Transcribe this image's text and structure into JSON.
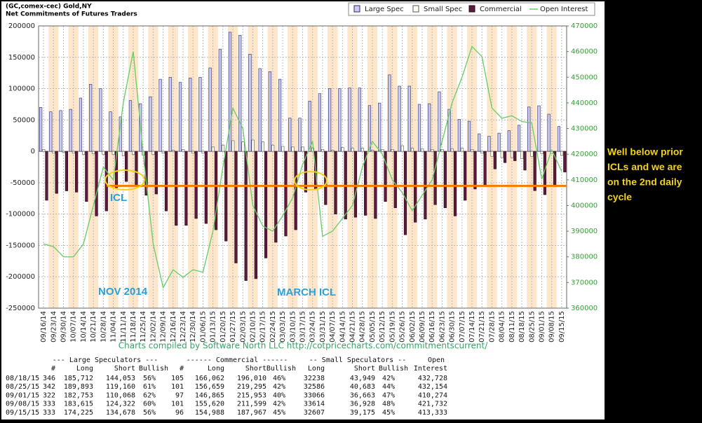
{
  "chart_data": {
    "type": "bar",
    "title": "(GC,comex-cec) Gold,NY",
    "subtitle": "Net Commitments of Futures Traders",
    "categories": [
      "09/16/14",
      "09/23/14",
      "09/30/14",
      "10/07/14",
      "10/14/14",
      "10/21/14",
      "10/28/14",
      "11/04/14",
      "11/11/14",
      "11/18/14",
      "11/25/14",
      "12/02/14",
      "12/09/14",
      "12/16/14",
      "12/23/14",
      "12/30/14",
      "01/06/15",
      "01/13/15",
      "01/20/15",
      "01/27/15",
      "02/03/15",
      "02/10/15",
      "02/17/15",
      "02/24/15",
      "03/03/15",
      "03/10/15",
      "03/17/15",
      "03/24/15",
      "03/31/15",
      "04/07/15",
      "04/14/15",
      "04/21/15",
      "04/28/15",
      "05/05/15",
      "05/12/15",
      "05/19/15",
      "05/26/15",
      "06/02/15",
      "06/09/15",
      "06/16/15",
      "06/23/15",
      "06/30/15",
      "07/07/15",
      "07/14/15",
      "07/21/15",
      "07/28/15",
      "08/04/15",
      "08/11/15",
      "08/18/15",
      "08/25/15",
      "09/01/15",
      "09/08/15",
      "09/15/15"
    ],
    "series": [
      {
        "name": "Large Spec",
        "color": "#c9c9f2",
        "values": [
          70000,
          63000,
          65000,
          67000,
          85000,
          107000,
          100000,
          63000,
          55000,
          81000,
          76000,
          87000,
          115000,
          118000,
          110000,
          117000,
          118000,
          133000,
          163000,
          190000,
          185000,
          155000,
          132000,
          127000,
          115000,
          53000,
          53000,
          80000,
          92000,
          100000,
          100000,
          101000,
          101000,
          73000,
          77000,
          122000,
          104000,
          104000,
          75000,
          76000,
          95000,
          67000,
          51000,
          48000,
          28000,
          24000,
          29000,
          33000,
          41659,
          70733,
          72685,
          59293,
          39547
        ]
      },
      {
        "name": "Small Spec",
        "color": "#fffff2",
        "values": [
          3000,
          -3000,
          -2000,
          -3000,
          -5000,
          -4000,
          -5000,
          -5000,
          -7000,
          -5000,
          -6000,
          -5000,
          -3000,
          2000,
          3000,
          -3000,
          -3000,
          7000,
          10000,
          17000,
          15000,
          18000,
          15000,
          10000,
          8000,
          7000,
          7000,
          5000,
          3000,
          2000,
          6000,
          5000,
          5000,
          2000,
          3000,
          3000,
          9000,
          5000,
          4000,
          3000,
          3000,
          4000,
          5000,
          3000,
          -3000,
          -8000,
          -10000,
          -10000,
          -11711,
          -8097,
          -3597,
          -3314,
          -6568
        ]
      },
      {
        "name": "Commercial",
        "color": "#5c1a3c",
        "values": [
          -78000,
          -67000,
          -63000,
          -65000,
          -80000,
          -103000,
          -95000,
          -58000,
          -48000,
          -55000,
          -70000,
          -68000,
          -95000,
          -118000,
          -118000,
          -107000,
          -115000,
          -125000,
          -143000,
          -178000,
          -206000,
          -203000,
          -170000,
          -145000,
          -135000,
          -125000,
          -65000,
          -60000,
          -85000,
          -100000,
          -108000,
          -105000,
          -102000,
          -107000,
          -80000,
          -90000,
          -133000,
          -113000,
          -108000,
          -85000,
          -90000,
          -103000,
          -78000,
          -60000,
          -55000,
          -28000,
          -18000,
          -15000,
          -29948,
          -62636,
          -69088,
          -55979,
          -32979
        ]
      },
      {
        "name": "Open Interest",
        "color": "#66cc66",
        "type": "line",
        "axis": "y2",
        "values": [
          385000,
          384000,
          380000,
          380000,
          385000,
          400000,
          415000,
          410000,
          440000,
          460000,
          420000,
          385000,
          368000,
          375000,
          372000,
          375000,
          374000,
          390000,
          415000,
          438000,
          430000,
          400000,
          392000,
          390000,
          396000,
          403000,
          416000,
          425000,
          388000,
          390000,
          395000,
          400000,
          415000,
          425000,
          420000,
          410000,
          405000,
          398000,
          404000,
          410000,
          425000,
          440000,
          450000,
          462000,
          458000,
          438000,
          434000,
          435000,
          432728,
          432154,
          410274,
          421732,
          413333
        ]
      }
    ],
    "ylim": [
      -250000,
      200000
    ],
    "yticks": [
      -250000,
      -200000,
      -150000,
      -100000,
      -50000,
      0,
      50000,
      100000,
      150000,
      200000
    ],
    "y2lim": [
      360000,
      470000
    ],
    "y2ticks": [
      360000,
      370000,
      380000,
      390000,
      400000,
      410000,
      420000,
      430000,
      440000,
      450000,
      460000,
      470000
    ],
    "grid": true,
    "legend": "top-right",
    "reference_line": {
      "value": -55000,
      "color": "#f57c00"
    },
    "caption": "Charts compiled by Software North LLC  http://cotpricecharts.com/commitmentscurrent/",
    "annotations": [
      "ICL",
      "NOV 2014",
      "MARCH ICL"
    ],
    "side_note": [
      "Well below prior",
      "ICLs and we are",
      "on the 2nd daily",
      "cycle"
    ]
  },
  "table": {
    "groups": [
      "--- Large Speculators ---",
      "------ Commercial ------",
      "-- Small Speculators --",
      "Open"
    ],
    "columns": [
      "#",
      "Long",
      "Short",
      "Bullish",
      "#",
      "Long",
      "Short",
      "Bullish",
      "Long",
      "Short",
      "Bullish",
      "Interest"
    ],
    "rows": [
      [
        "08/18/15",
        "346",
        "185,712",
        "144,053",
        "56%",
        "105",
        "166,062",
        "196,010",
        "46%",
        "32238",
        "43,949",
        "42%",
        "432,728"
      ],
      [
        "08/25/15",
        "342",
        "189,893",
        "119,160",
        "61%",
        "101",
        "156,659",
        "219,295",
        "42%",
        "32586",
        "40,683",
        "44%",
        "432,154"
      ],
      [
        "09/01/15",
        "322",
        "182,753",
        "110,068",
        "62%",
        "97",
        "146,865",
        "215,953",
        "40%",
        "33066",
        "36,663",
        "47%",
        "410,274"
      ],
      [
        "09/08/15",
        "333",
        "183,615",
        "124,322",
        "60%",
        "101",
        "155,620",
        "211,599",
        "42%",
        "33614",
        "36,928",
        "48%",
        "421,732"
      ],
      [
        "09/15/15",
        "333",
        "174,225",
        "134,678",
        "56%",
        "96",
        "154,988",
        "187,967",
        "45%",
        "32607",
        "39,175",
        "45%",
        "413,333"
      ]
    ]
  }
}
